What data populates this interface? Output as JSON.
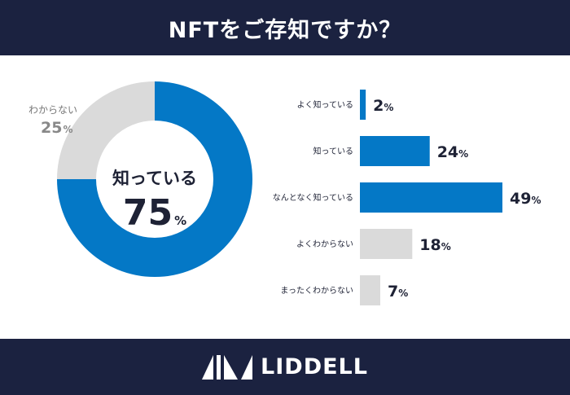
{
  "header": {
    "title": "NFTをご存知ですか？"
  },
  "colors": {
    "navy": "#1b2240",
    "blue": "#0478c6",
    "gray": "#dadada",
    "text": "#1e2235"
  },
  "chart_data": [
    {
      "type": "pie",
      "title": "",
      "slices": [
        {
          "label": "知っている",
          "value": 75,
          "unit": "%",
          "color": "#0478c6"
        },
        {
          "label": "わからない",
          "value": 25,
          "unit": "%",
          "color": "#dadada"
        }
      ]
    },
    {
      "type": "bar",
      "orientation": "horizontal",
      "categories": [
        "よく知っている",
        "知っている",
        "なんとなく知っている",
        "よくわからない",
        "まったくわからない"
      ],
      "values": [
        2,
        24,
        49,
        18,
        7
      ],
      "unit": "%",
      "colors": [
        "#0478c6",
        "#0478c6",
        "#0478c6",
        "#dadada",
        "#dadada"
      ],
      "xlim": [
        0,
        49
      ]
    }
  ],
  "footer": {
    "brand": "LIDDELL"
  }
}
